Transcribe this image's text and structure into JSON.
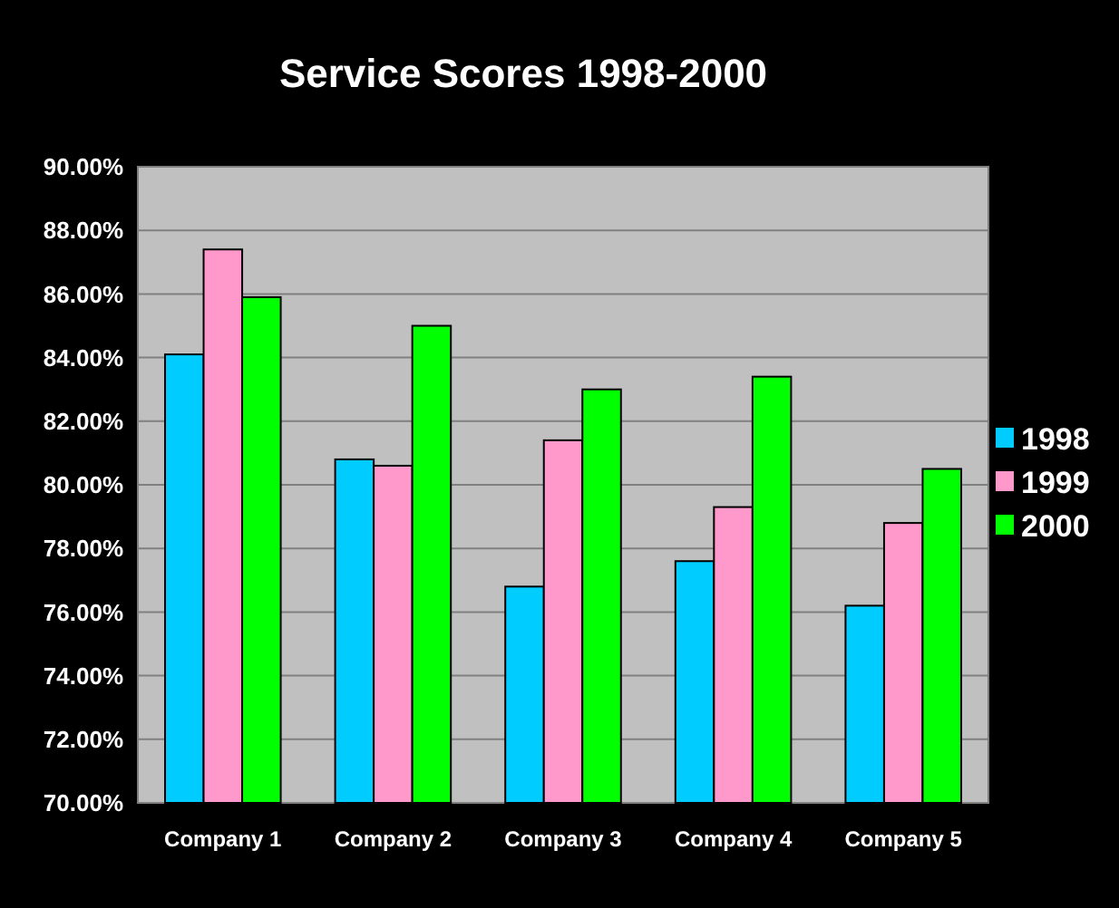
{
  "chart_data": {
    "type": "bar",
    "title": "Service Scores 1998-2000",
    "categories": [
      "Company 1",
      "Company 2",
      "Company 3",
      "Company 4",
      "Company 5"
    ],
    "series": [
      {
        "name": "1998",
        "color": "#00ccff",
        "values": [
          84.1,
          80.8,
          76.8,
          77.6,
          76.2
        ]
      },
      {
        "name": "1999",
        "color": "#ff99cc",
        "values": [
          87.4,
          80.6,
          81.4,
          79.3,
          78.8
        ]
      },
      {
        "name": "2000",
        "color": "#00ff00",
        "values": [
          85.9,
          85.0,
          83.0,
          83.4,
          80.5
        ]
      }
    ],
    "ylim": [
      70,
      90
    ],
    "yticks": [
      {
        "value": 70,
        "label": "70.00%"
      },
      {
        "value": 72,
        "label": "72.00%"
      },
      {
        "value": 74,
        "label": "74.00%"
      },
      {
        "value": 76,
        "label": "76.00%"
      },
      {
        "value": 78,
        "label": "78.00%"
      },
      {
        "value": 80,
        "label": "80.00%"
      },
      {
        "value": 82,
        "label": "82.00%"
      },
      {
        "value": 84,
        "label": "84.00%"
      },
      {
        "value": 86,
        "label": "86.00%"
      },
      {
        "value": 88,
        "label": "88.00%"
      },
      {
        "value": 90,
        "label": "90.00%"
      }
    ],
    "grid": "y",
    "legend": "right"
  }
}
